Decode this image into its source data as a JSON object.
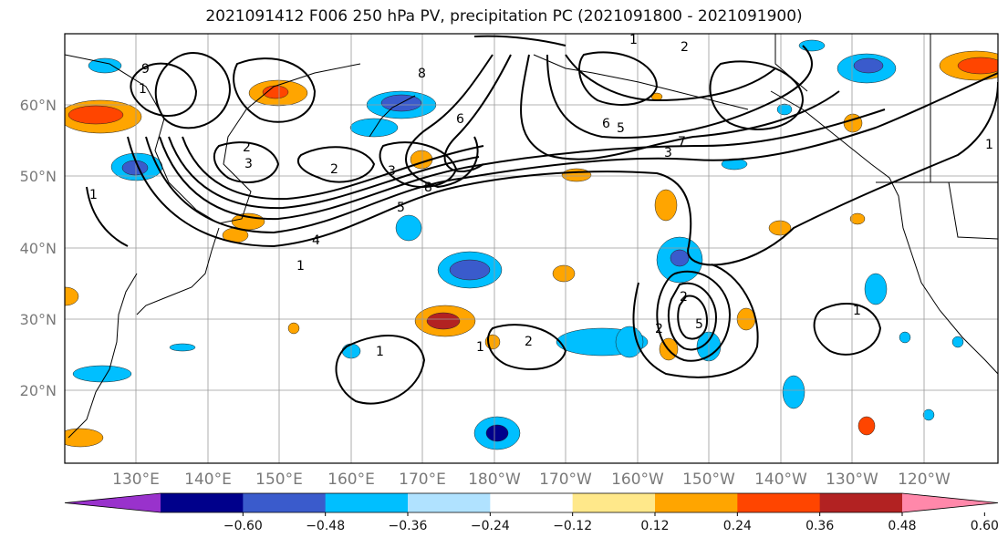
{
  "title": "2021091412 F006 250 hPa PV, precipitation PC (2021091800 - 2021091900)",
  "lat_labels": [
    "60°N",
    "50°N",
    "40°N",
    "30°N",
    "20°N"
  ],
  "lon_labels": [
    "130°E",
    "140°E",
    "150°E",
    "160°E",
    "170°E",
    "180°W",
    "170°W",
    "160°W",
    "150°W",
    "140°W",
    "130°W",
    "120°W"
  ],
  "colorbar": {
    "colors": [
      "#9932cc",
      "#00008b",
      "#3a5bcc",
      "#00bfff",
      "#b0e2ff",
      "#ffffff",
      "#ffe88a",
      "#ffa500",
      "#ff4500",
      "#b22222",
      "#ff88aa"
    ],
    "tick_labels": [
      "−0.60",
      "−0.48",
      "−0.36",
      "−0.24",
      "−0.12",
      "0.12",
      "0.24",
      "0.36",
      "0.48",
      "0.60"
    ]
  },
  "pv_contour_labels": [
    "1",
    "2",
    "3",
    "9",
    "8",
    "6",
    "5",
    "4",
    "1",
    "2",
    "1",
    "8",
    "3",
    "6",
    "5",
    "7",
    "2",
    "3",
    "5",
    "2",
    "1",
    "1",
    "1",
    "2",
    "2",
    "1",
    "1"
  ]
}
